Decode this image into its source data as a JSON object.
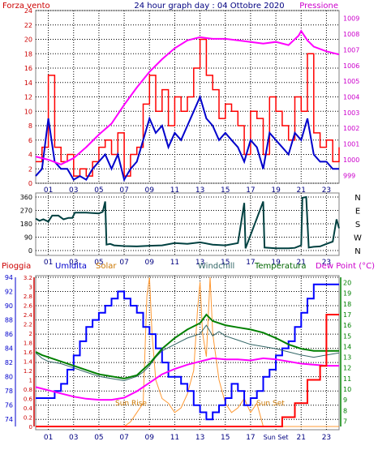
{
  "colors": {
    "wind": "#ff0000",
    "gust_fill": "#ff0000",
    "pressure": "#ff00ff",
    "wind_avg": "#0000cc",
    "direction": "#004040",
    "rain": "#ff0000",
    "humidity": "#0000ff",
    "solar": "#ff9933",
    "windchill": "#336666",
    "temperature": "#008000",
    "dewpoint": "#ff00ff",
    "grid": "#000000",
    "axis_text": "#000080",
    "frame": "#808080"
  },
  "chart_data": [
    {
      "type": "line",
      "title": "24 hour graph day : 04 Ottobre 2020",
      "left_label": "Forza vento",
      "right_label": "Pressione",
      "x_ticks": [
        "01",
        "03",
        "05",
        "07",
        "09",
        "11",
        "13",
        "15",
        "17",
        "19",
        "21",
        "23"
      ],
      "ylim_left": [
        0,
        24
      ],
      "y_ticks_left": [
        "0",
        "2",
        "4",
        "6",
        "8",
        "10",
        "12",
        "14",
        "16",
        "18",
        "20",
        "22",
        "24"
      ],
      "ylim_right": [
        998.5,
        1009.5
      ],
      "y_ticks_right": [
        "999",
        "1000",
        "1001",
        "1002",
        "1003",
        "1004",
        "1005",
        "1006",
        "1007",
        "1008",
        "1009"
      ],
      "series": [
        {
          "name": "Forza vento",
          "axis": "left",
          "x": [
            0.0,
            0.5,
            1.0,
            1.5,
            2.0,
            2.5,
            3.0,
            3.5,
            4.0,
            4.5,
            5.0,
            5.5,
            6.0,
            6.5,
            7.0,
            7.5,
            8.0,
            8.5,
            9.0,
            9.5,
            10.0,
            10.5,
            11.0,
            11.5,
            12.0,
            12.5,
            13.0,
            13.5,
            14.0,
            14.5,
            15.0,
            15.5,
            16.0,
            16.5,
            17.0,
            17.5,
            18.0,
            18.5,
            19.0,
            19.5,
            20.0,
            20.5,
            21.0,
            21.5,
            22.0,
            22.5,
            23.0,
            23.5,
            24.0
          ],
          "values": [
            3,
            5,
            15,
            5,
            3,
            4,
            1,
            2,
            1,
            3,
            5,
            6,
            4,
            7,
            1,
            4,
            5,
            11,
            15,
            10,
            13,
            8,
            12,
            10,
            12,
            16,
            20,
            15,
            13,
            9,
            11,
            10,
            8,
            4,
            10,
            9,
            4,
            12,
            10,
            8,
            6,
            12,
            10,
            18,
            7,
            5,
            6,
            3,
            5
          ]
        },
        {
          "name": "",
          "axis": "left",
          "x": [
            0.0,
            0.5,
            1.0,
            1.5,
            2.0,
            2.5,
            3.0,
            3.5,
            4.0,
            4.5,
            5.0,
            5.5,
            6.0,
            6.5,
            7.0,
            7.5,
            8.0,
            8.5,
            9.0,
            9.5,
            10.0,
            10.5,
            11.0,
            11.5,
            12.0,
            12.5,
            13.0,
            13.5,
            14.0,
            14.5,
            15.0,
            15.5,
            16.0,
            16.5,
            17.0,
            17.5,
            18.0,
            18.5,
            19.0,
            19.5,
            20.0,
            20.5,
            21.0,
            21.5,
            22.0,
            22.5,
            23.0,
            23.5,
            24.0
          ],
          "values": [
            1,
            2,
            9,
            3,
            2,
            2,
            0.5,
            1,
            0.5,
            2,
            3,
            4,
            2,
            4,
            0.5,
            2,
            3,
            6,
            9,
            7,
            8,
            5,
            7,
            6,
            8,
            10,
            12,
            9,
            8,
            6,
            7,
            6,
            5,
            3,
            6,
            5,
            2,
            7,
            6,
            5,
            4,
            7,
            6,
            9,
            4,
            3,
            3,
            2,
            2
          ]
        },
        {
          "name": "Pressione",
          "axis": "right",
          "x": [
            0,
            1,
            2,
            3,
            4,
            5,
            6,
            7,
            8,
            9,
            10,
            11,
            12,
            13,
            14,
            15,
            16,
            17,
            18,
            19,
            20,
            20.8,
            21,
            21.5,
            22,
            23,
            24
          ],
          "values": [
            1000.2,
            1000.0,
            999.7,
            1000.1,
            1000.8,
            1001.6,
            1002.3,
            1003.5,
            1004.6,
            1005.6,
            1006.4,
            1007.1,
            1007.6,
            1007.8,
            1007.7,
            1007.7,
            1007.6,
            1007.5,
            1007.4,
            1007.5,
            1007.3,
            1007.9,
            1008.2,
            1007.6,
            1007.2,
            1006.9,
            1006.7
          ]
        }
      ]
    },
    {
      "type": "line",
      "title": "",
      "x_ticks": [
        "01",
        "03",
        "05",
        "07",
        "09",
        "11",
        "13",
        "15",
        "17",
        "19",
        "21",
        "23"
      ],
      "ylim": [
        0,
        360
      ],
      "y_ticks": [
        "0",
        "90",
        "180",
        "270",
        "360"
      ],
      "right_labels": [
        "N",
        "W",
        "S",
        "E",
        "N"
      ],
      "series": [
        {
          "name": "",
          "x": [
            0.0,
            0.3,
            0.6,
            1.0,
            1.3,
            1.8,
            2.2,
            2.6,
            2.9,
            3.1,
            4.0,
            5.0,
            5.3,
            5.5,
            5.6,
            5.9,
            6.2,
            7.0,
            8.0,
            9.0,
            10.0,
            11.0,
            12.0,
            13.0,
            14.0,
            15.0,
            16.0,
            16.5,
            16.6,
            18.0,
            18.1,
            19.0,
            20.0,
            20.5,
            21.0,
            21.1,
            21.4,
            21.6,
            22.0,
            22.5,
            23.0,
            23.5,
            23.8,
            24.0
          ],
          "values": [
            215,
            200,
            210,
            195,
            235,
            235,
            210,
            220,
            220,
            255,
            255,
            250,
            260,
            330,
            40,
            45,
            35,
            30,
            28,
            32,
            35,
            50,
            45,
            55,
            40,
            35,
            50,
            320,
            15,
            330,
            20,
            15,
            15,
            18,
            35,
            355,
            360,
            20,
            25,
            28,
            45,
            60,
            210,
            150
          ]
        }
      ]
    },
    {
      "type": "line",
      "title": "",
      "labels": {
        "rain": "Pioggia",
        "humidity": "Umidita",
        "solar": "Solar",
        "windchill": "Windchill",
        "temperature": "Temperatura",
        "dewpoint": "Dew Point (°C)"
      },
      "x_ticks": [
        "01",
        "03",
        "05",
        "07",
        "09",
        "11",
        "13",
        "15",
        "17",
        "19",
        "21",
        "23"
      ],
      "sunset_tick": "Sun Set",
      "ylim_rain": [
        0,
        3.2
      ],
      "y_ticks_rain": [
        "0",
        "0.2",
        "0.4",
        "0.6",
        "0.8",
        "1",
        "1.2",
        "1.4",
        "1.6",
        "1.8",
        "2",
        "2.2",
        "2.4",
        "2.6",
        "2.8",
        "3",
        "3.2"
      ],
      "ylim_humidity": [
        73,
        94
      ],
      "y_ticks_humidity": [
        "74",
        "76",
        "78",
        "80",
        "82",
        "84",
        "86",
        "88",
        "90",
        "92",
        "94"
      ],
      "ylim_temp": [
        6.5,
        20.5
      ],
      "y_ticks_temp": [
        "7",
        "8",
        "9",
        "10",
        "11",
        "12",
        "13",
        "14",
        "15",
        "16",
        "17",
        "18",
        "19",
        "20"
      ],
      "annotations": [
        "Sun Rise",
        "Sun Set"
      ],
      "series": [
        {
          "name": "Pioggia",
          "axis": "rain",
          "x": [
            0,
            18.8,
            19.5,
            20.5,
            21.5,
            22.5,
            23.0,
            24
          ],
          "values": [
            0,
            0,
            0.2,
            0.5,
            1.0,
            1.3,
            2.4,
            2.4
          ]
        },
        {
          "name": "Umidita",
          "axis": "humidity",
          "x": [
            0,
            1.0,
            1.5,
            2.0,
            2.5,
            3.0,
            3.5,
            4.0,
            4.5,
            5.0,
            5.5,
            6.0,
            6.5,
            7.0,
            7.5,
            8.0,
            8.5,
            9.0,
            9.5,
            10.0,
            10.5,
            11.0,
            11.5,
            12.0,
            12.5,
            13.0,
            13.5,
            14.0,
            14.5,
            15.0,
            15.5,
            16.0,
            16.5,
            17.0,
            17.5,
            18.0,
            18.5,
            19.0,
            19.5,
            20.0,
            20.5,
            21.0,
            21.5,
            22.0,
            23.0,
            24
          ],
          "values": [
            77,
            77,
            78,
            79,
            81,
            83,
            85,
            87,
            88,
            89,
            90,
            91,
            92,
            91,
            90,
            89,
            87,
            86,
            84,
            82,
            80,
            80,
            79,
            78,
            76,
            75,
            74,
            75,
            76,
            77,
            79,
            78,
            76,
            77,
            78,
            80,
            81,
            83,
            84,
            85,
            87,
            89,
            91,
            93,
            93,
            93
          ]
        },
        {
          "name": "Solar",
          "axis": "rain",
          "x": [
            0,
            7.0,
            7.5,
            8.0,
            8.5,
            8.8,
            9.0,
            9.2,
            9.5,
            10.0,
            10.5,
            11.0,
            11.5,
            12.0,
            12.5,
            12.8,
            13.0,
            13.2,
            13.5,
            13.8,
            14.0,
            14.2,
            14.5,
            15.0,
            15.5,
            16.0,
            16.5,
            17.0,
            17.5,
            17.8,
            18.0,
            24
          ],
          "values": [
            0,
            0,
            0.1,
            0.3,
            0.5,
            2.8,
            3.2,
            2.0,
            1.0,
            0.6,
            0.5,
            0.3,
            0.4,
            0.7,
            1.2,
            2.5,
            3.1,
            2.0,
            1.5,
            3.2,
            2.0,
            1.6,
            1.0,
            0.5,
            0.3,
            0.4,
            0.6,
            0.3,
            0.5,
            0.2,
            0,
            0
          ]
        },
        {
          "name": "Windchill",
          "axis": "temp",
          "x": [
            0,
            0.5,
            1,
            2,
            3,
            4,
            5,
            6,
            7,
            8,
            8.5,
            9,
            9.5,
            10,
            11,
            12,
            13,
            13.5,
            14,
            14.5,
            15,
            16,
            17,
            18,
            19,
            20,
            21,
            22,
            23,
            24
          ],
          "values": [
            13.4,
            12.9,
            12.6,
            12.4,
            12.0,
            11.6,
            11.2,
            11.0,
            10.8,
            11.2,
            11.6,
            12.2,
            13.0,
            13.6,
            14.2,
            14.8,
            15.2,
            16.0,
            15.0,
            15.4,
            15.0,
            14.6,
            14.2,
            14.0,
            13.8,
            13.5,
            13.2,
            13.0,
            13.2,
            13.4
          ]
        },
        {
          "name": "Temperatura",
          "axis": "temp",
          "x": [
            0,
            0.5,
            1,
            2,
            3,
            4,
            5,
            6,
            7,
            8,
            9,
            10,
            11,
            12,
            13,
            13.5,
            14,
            15,
            16,
            17,
            18,
            19,
            20,
            21,
            22,
            23,
            24
          ],
          "values": [
            13.5,
            13.2,
            13.0,
            12.6,
            12.2,
            11.8,
            11.4,
            11.2,
            11.0,
            11.3,
            12.4,
            13.8,
            14.8,
            15.6,
            16.2,
            17.0,
            16.4,
            16.0,
            15.8,
            15.6,
            15.3,
            14.8,
            14.2,
            13.8,
            13.6,
            13.6,
            13.6
          ]
        },
        {
          "name": "Dew Point",
          "axis": "temp",
          "x": [
            0,
            1,
            2,
            3,
            4,
            5,
            6,
            7,
            8,
            9,
            10,
            11,
            12,
            13,
            14,
            15,
            16,
            17,
            18,
            19,
            20,
            21,
            22,
            23,
            24
          ],
          "values": [
            10.2,
            9.9,
            9.6,
            9.3,
            9.1,
            9.0,
            9.0,
            9.2,
            9.8,
            10.6,
            11.4,
            11.9,
            12.3,
            12.6,
            12.9,
            12.8,
            12.8,
            12.7,
            12.9,
            12.8,
            12.6,
            12.4,
            12.3,
            12.2,
            12.2
          ]
        }
      ]
    }
  ]
}
